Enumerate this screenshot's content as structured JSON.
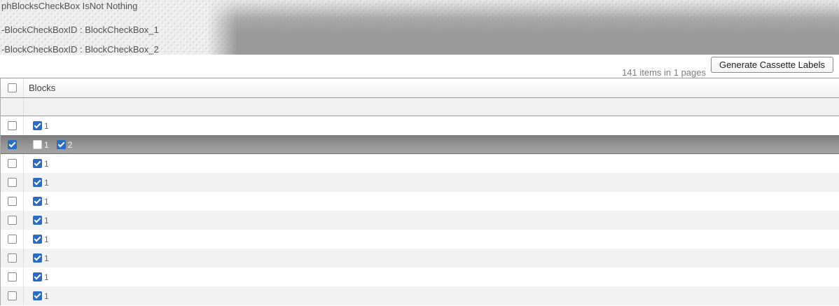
{
  "colors": {
    "checkbox_blue": "#2a6bc6",
    "banner_gray": "#9a9a9a",
    "selected_row_gray": "#8f8f8f",
    "alt_row_gray": "#f2f2f2",
    "grid_border_gray": "#999999"
  },
  "debug_panel": {
    "lines": [
      "phBlocksCheckBox IsNot Nothing",
      "-BlockCheckBoxID : BlockCheckBox_1",
      "-BlockCheckBoxID : BlockCheckBox_2"
    ]
  },
  "toolbar": {
    "items_summary": "141 items in 1 pages",
    "generate_button_label": "Generate Cassette Labels"
  },
  "grid": {
    "column_header": "Blocks",
    "select_all_checked": false,
    "rows": [
      {
        "selected": false,
        "row_checked": false,
        "blocks": [
          {
            "label": "1",
            "checked": true
          }
        ]
      },
      {
        "selected": true,
        "row_checked": true,
        "blocks": [
          {
            "label": "1",
            "checked": false
          },
          {
            "label": "2",
            "checked": true
          }
        ]
      },
      {
        "selected": false,
        "row_checked": false,
        "blocks": [
          {
            "label": "1",
            "checked": true
          }
        ]
      },
      {
        "selected": false,
        "row_checked": false,
        "blocks": [
          {
            "label": "1",
            "checked": true
          }
        ]
      },
      {
        "selected": false,
        "row_checked": false,
        "blocks": [
          {
            "label": "1",
            "checked": true
          }
        ]
      },
      {
        "selected": false,
        "row_checked": false,
        "blocks": [
          {
            "label": "1",
            "checked": true
          }
        ]
      },
      {
        "selected": false,
        "row_checked": false,
        "blocks": [
          {
            "label": "1",
            "checked": true
          }
        ]
      },
      {
        "selected": false,
        "row_checked": false,
        "blocks": [
          {
            "label": "1",
            "checked": true
          }
        ]
      },
      {
        "selected": false,
        "row_checked": false,
        "blocks": [
          {
            "label": "1",
            "checked": true
          }
        ]
      },
      {
        "selected": false,
        "row_checked": false,
        "blocks": [
          {
            "label": "1",
            "checked": true
          }
        ]
      }
    ]
  }
}
